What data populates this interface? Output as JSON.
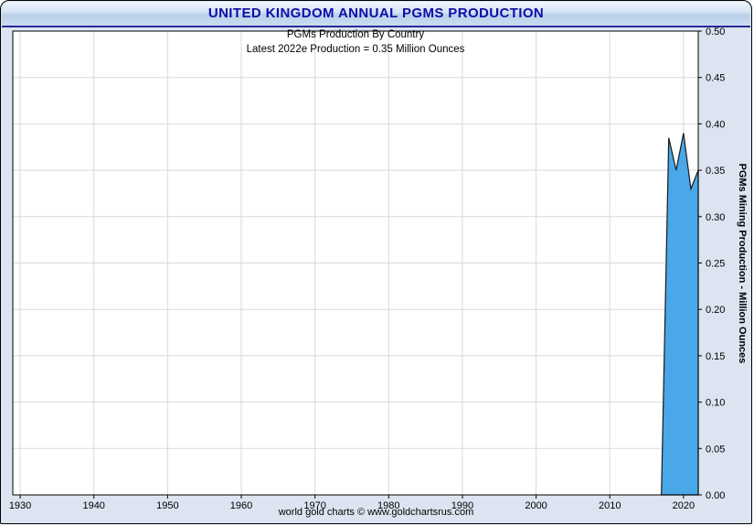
{
  "header": {
    "title": "UNITED KINGDOM ANNUAL PGMS PRODUCTION"
  },
  "chart_data": {
    "type": "area",
    "title": "PGMs Production By Country",
    "annotation": "Latest 2022e Production = 0.35 Million Ounces",
    "ylabel": "PGMs Mining Production - Million Ounces",
    "xlim": [
      1929,
      2022
    ],
    "ylim": [
      0,
      0.5
    ],
    "xticks": [
      1930,
      1940,
      1950,
      1960,
      1970,
      1980,
      1990,
      2000,
      2010,
      2020
    ],
    "yticks": [
      0,
      0.05,
      0.1,
      0.15,
      0.2,
      0.25,
      0.3,
      0.35,
      0.4,
      0.45,
      0.5
    ],
    "x": [
      2017,
      2018,
      2019,
      2020,
      2021,
      2022
    ],
    "values": [
      0,
      0.385,
      0.35,
      0.39,
      0.33,
      0.35
    ],
    "fill_color": "#4aa7e8",
    "line_color": "#1a1a1a",
    "grid_color": "#d9d9d9",
    "grid_on": true,
    "legend": "none"
  },
  "footer": {
    "credit": "world gold charts © www.goldchartsrus.com"
  }
}
